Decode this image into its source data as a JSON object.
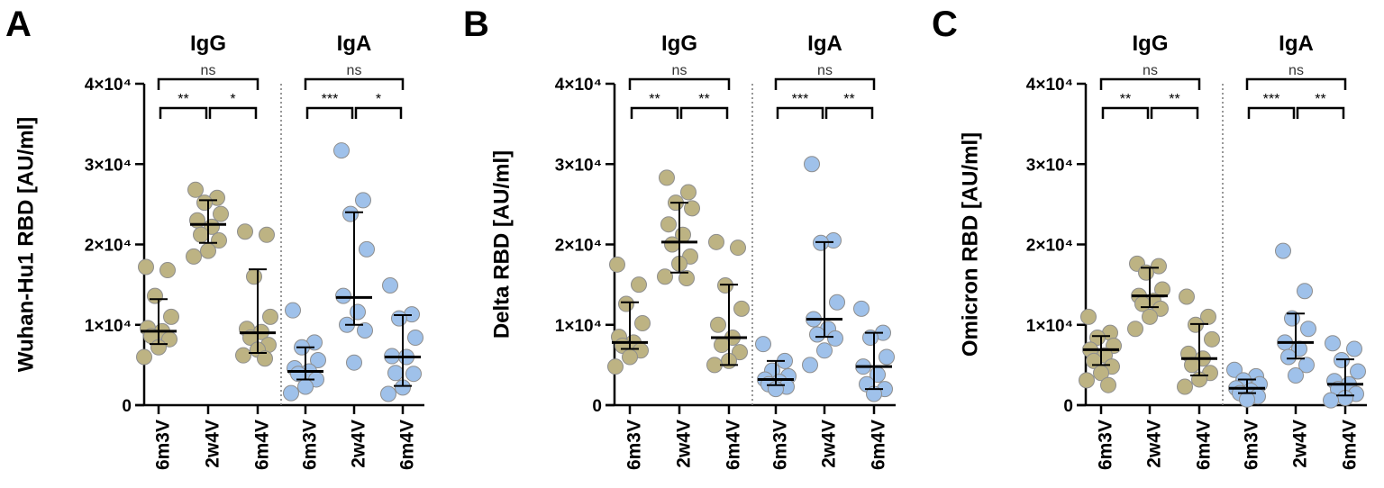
{
  "colors": {
    "igg": "#bdb383",
    "iga": "#9fc1ea",
    "edge": "#8e8e8e",
    "line": "#000000",
    "divider": "#777777"
  },
  "chart_data": [
    {
      "type": "scatter",
      "panel": "A",
      "ylabel": "Wuhan-Hu1 RBD [AU/ml]",
      "ylim": [
        0,
        40000
      ],
      "yticks": [
        {
          "value": 0,
          "label": "0"
        },
        {
          "value": 10000,
          "label": "1×10⁴"
        },
        {
          "value": 20000,
          "label": "2×10⁴"
        },
        {
          "value": 30000,
          "label": "3×10⁴"
        },
        {
          "value": 40000,
          "label": "4×10⁴"
        }
      ],
      "categories": [
        "6m3V",
        "2w4V",
        "6m4V",
        "6m3V",
        "2w4V",
        "6m4V"
      ],
      "groups": [
        {
          "label": "IgG",
          "start": 0,
          "end": 2,
          "color_key": "igg"
        },
        {
          "label": "IgA",
          "start": 3,
          "end": 5,
          "color_key": "iga"
        }
      ],
      "series": [
        {
          "median": 9200,
          "q1": 7600,
          "q3": 13200,
          "points": [
            17200,
            16800,
            13600,
            11000,
            9600,
            9200,
            8600,
            8200,
            7200,
            6000
          ]
        },
        {
          "median": 22500,
          "q1": 20200,
          "q3": 25500,
          "points": [
            26800,
            25800,
            25200,
            23800,
            23000,
            22200,
            21200,
            20500,
            19200,
            18500
          ]
        },
        {
          "median": 9000,
          "q1": 6500,
          "q3": 16900,
          "points": [
            21600,
            21200,
            16000,
            11000,
            9500,
            9100,
            8400,
            7500,
            6900,
            6200,
            5800
          ]
        },
        {
          "median": 4200,
          "q1": 3200,
          "q3": 7200,
          "points": [
            11800,
            7800,
            7200,
            5600,
            4600,
            4200,
            3900,
            3200,
            2300,
            1500
          ]
        },
        {
          "median": 13400,
          "q1": 10000,
          "q3": 24000,
          "points": [
            31700,
            25500,
            23800,
            19400,
            13600,
            11600,
            10000,
            9300,
            5300
          ]
        },
        {
          "median": 6000,
          "q1": 2400,
          "q3": 11200,
          "points": [
            14900,
            11300,
            10800,
            8400,
            6100,
            6000,
            4000,
            3900,
            2200,
            1400
          ]
        }
      ],
      "significance": [
        {
          "from": 0,
          "to": 1,
          "label": "**",
          "level": 1
        },
        {
          "from": 1,
          "to": 2,
          "label": "*",
          "level": 1
        },
        {
          "from": 0,
          "to": 2,
          "label": "ns",
          "level": 2
        },
        {
          "from": 3,
          "to": 4,
          "label": "***",
          "level": 1
        },
        {
          "from": 4,
          "to": 5,
          "label": "*",
          "level": 1
        },
        {
          "from": 3,
          "to": 5,
          "label": "ns",
          "level": 2
        }
      ]
    },
    {
      "type": "scatter",
      "panel": "B",
      "ylabel": "Delta RBD [AU/ml]",
      "ylim": [
        0,
        40000
      ],
      "yticks": [
        {
          "value": 0,
          "label": "0"
        },
        {
          "value": 10000,
          "label": "1×10⁴"
        },
        {
          "value": 20000,
          "label": "2×10⁴"
        },
        {
          "value": 30000,
          "label": "3×10⁴"
        },
        {
          "value": 40000,
          "label": "4×10⁴"
        }
      ],
      "categories": [
        "6m3V",
        "2w4V",
        "6m4V",
        "6m3V",
        "2w4V",
        "6m4V"
      ],
      "groups": [
        {
          "label": "IgG",
          "start": 0,
          "end": 2,
          "color_key": "igg"
        },
        {
          "label": "IgA",
          "start": 3,
          "end": 5,
          "color_key": "iga"
        }
      ],
      "series": [
        {
          "median": 7800,
          "q1": 7000,
          "q3": 12800,
          "points": [
            17500,
            15000,
            12600,
            10200,
            8500,
            7800,
            7400,
            6800,
            6000,
            4800
          ]
        },
        {
          "median": 20300,
          "q1": 16500,
          "q3": 25200,
          "points": [
            28300,
            26500,
            25200,
            24500,
            22500,
            21200,
            20000,
            18500,
            17600,
            16000,
            15800
          ]
        },
        {
          "median": 8400,
          "q1": 5000,
          "q3": 15000,
          "points": [
            20300,
            19600,
            14900,
            12000,
            10000,
            8400,
            7500,
            6600,
            5500,
            5000
          ]
        },
        {
          "median": 3200,
          "q1": 2500,
          "q3": 5500,
          "points": [
            7600,
            5500,
            4300,
            3600,
            3200,
            2900,
            2600,
            2300,
            2000
          ]
        },
        {
          "median": 10700,
          "q1": 8500,
          "q3": 20300,
          "points": [
            30000,
            20500,
            20200,
            12800,
            10700,
            9500,
            8800,
            8300,
            6800,
            5000
          ]
        },
        {
          "median": 4800,
          "q1": 2000,
          "q3": 9000,
          "points": [
            12000,
            9000,
            8400,
            6000,
            4800,
            3800,
            2600,
            2000,
            1400
          ]
        }
      ],
      "significance": [
        {
          "from": 0,
          "to": 1,
          "label": "**",
          "level": 1
        },
        {
          "from": 1,
          "to": 2,
          "label": "**",
          "level": 1
        },
        {
          "from": 0,
          "to": 2,
          "label": "ns",
          "level": 2
        },
        {
          "from": 3,
          "to": 4,
          "label": "***",
          "level": 1
        },
        {
          "from": 4,
          "to": 5,
          "label": "**",
          "level": 1
        },
        {
          "from": 3,
          "to": 5,
          "label": "ns",
          "level": 2
        }
      ]
    },
    {
      "type": "scatter",
      "panel": "C",
      "ylabel": "Omicron RBD [AU/ml]",
      "ylim": [
        0,
        40000
      ],
      "yticks": [
        {
          "value": 0,
          "label": "0"
        },
        {
          "value": 10000,
          "label": "1×10⁴"
        },
        {
          "value": 20000,
          "label": "2×10⁴"
        },
        {
          "value": 30000,
          "label": "3×10⁴"
        },
        {
          "value": 40000,
          "label": "4×10⁴"
        }
      ],
      "categories": [
        "6m3V",
        "2w4V",
        "6m4V",
        "6m3V",
        "2w4V",
        "6m4V"
      ],
      "groups": [
        {
          "label": "IgG",
          "start": 0,
          "end": 2,
          "color_key": "igg"
        },
        {
          "label": "IgA",
          "start": 3,
          "end": 5,
          "color_key": "iga"
        }
      ],
      "series": [
        {
          "median": 6900,
          "q1": 5000,
          "q3": 8600,
          "points": [
            11000,
            9000,
            8400,
            7400,
            6900,
            6200,
            5500,
            4800,
            4000,
            3100,
            2500
          ]
        },
        {
          "median": 13600,
          "q1": 12200,
          "q3": 17100,
          "points": [
            17600,
            17300,
            16500,
            14400,
            13600,
            13000,
            12600,
            12000,
            11000,
            9500
          ]
        },
        {
          "median": 5800,
          "q1": 3700,
          "q3": 10100,
          "points": [
            13500,
            11000,
            10000,
            8200,
            6400,
            5800,
            5000,
            4000,
            3200,
            2300
          ]
        },
        {
          "median": 2100,
          "q1": 1500,
          "q3": 3200,
          "points": [
            4400,
            3600,
            3100,
            2600,
            2100,
            1800,
            1500,
            1100,
            700
          ]
        },
        {
          "median": 7800,
          "q1": 5800,
          "q3": 11400,
          "points": [
            19200,
            14200,
            10800,
            9500,
            7800,
            7000,
            6000,
            5000,
            3700
          ]
        },
        {
          "median": 2600,
          "q1": 1200,
          "q3": 5700,
          "points": [
            7700,
            7000,
            5600,
            4200,
            3000,
            2600,
            2000,
            1400,
            900,
            600
          ]
        }
      ],
      "significance": [
        {
          "from": 0,
          "to": 1,
          "label": "**",
          "level": 1
        },
        {
          "from": 1,
          "to": 2,
          "label": "**",
          "level": 1
        },
        {
          "from": 0,
          "to": 2,
          "label": "ns",
          "level": 2
        },
        {
          "from": 3,
          "to": 4,
          "label": "***",
          "level": 1
        },
        {
          "from": 4,
          "to": 5,
          "label": "**",
          "level": 1
        },
        {
          "from": 3,
          "to": 5,
          "label": "ns",
          "level": 2
        }
      ]
    }
  ]
}
